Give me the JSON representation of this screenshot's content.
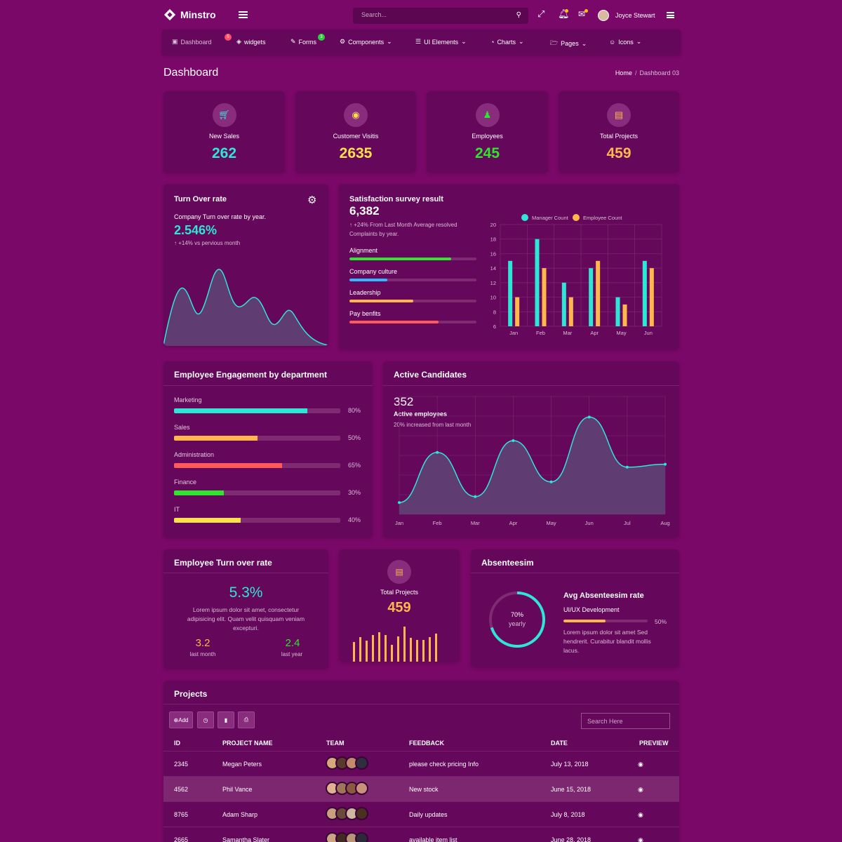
{
  "brand": {
    "name": "Minstro"
  },
  "search": {
    "placeholder": "Search..."
  },
  "user": {
    "name": "Joyce Stewart"
  },
  "nav": [
    {
      "label": "Dashboard",
      "badge": "5",
      "icon": "laptop-icon"
    },
    {
      "label": "widgets",
      "icon": "cube-icon"
    },
    {
      "label": "Forms",
      "badge": "3",
      "icon": "edit-icon"
    },
    {
      "label": "Components",
      "icon": "cogs-icon"
    },
    {
      "label": "UI Elements",
      "icon": "list-icon"
    },
    {
      "label": "Charts",
      "icon": "pie-chart-icon"
    },
    {
      "label": "Pages",
      "icon": "folder-icon"
    },
    {
      "label": "Icons",
      "icon": "smile-icon"
    }
  ],
  "page": {
    "title": "Dashboard",
    "breadcrumb_home": "Home",
    "breadcrumb_sep": "/",
    "breadcrumb_current": "Dashboard 03"
  },
  "stats": [
    {
      "label": "New Sales",
      "value": "262",
      "color": "#2ee6d6",
      "icon": "cart-icon"
    },
    {
      "label": "Customer Visitis",
      "value": "2635",
      "color": "#ffe14a",
      "icon": "eye-icon"
    },
    {
      "label": "Employees",
      "value": "245",
      "color": "#2ee62e",
      "icon": "user-icon"
    },
    {
      "label": "Total Projects",
      "value": "459",
      "color": "#ffb74d",
      "icon": "briefcase-icon"
    }
  ],
  "turnover": {
    "title": "Turn Over rate",
    "subtitle": "Company Turn over rate by year.",
    "value": "2.546%",
    "change": "+14%",
    "change_label": "vs pervious month"
  },
  "survey": {
    "title": "Satisfaction survey result",
    "value": "6,382",
    "change": "+24%",
    "note": "From Last Month Average resolved Complaints by year.",
    "items": [
      {
        "label": "Alignment",
        "percent": 80,
        "color": "#2ee62e"
      },
      {
        "label": "Company culture",
        "percent": 30,
        "color": "#2fb8ff"
      },
      {
        "label": "Leadership",
        "percent": 50,
        "color": "#ffb74d"
      },
      {
        "label": "Pay benfits",
        "percent": 70,
        "color": "#ff5a5a"
      }
    ]
  },
  "chart_data": [
    {
      "type": "bar",
      "categories": [
        "Jan",
        "Feb",
        "Mar",
        "Apr",
        "May",
        "Jun"
      ],
      "series": [
        {
          "name": "Manager Count",
          "values": [
            15,
            18,
            12,
            14,
            10,
            15
          ],
          "color": "#2ee6d6"
        },
        {
          "name": "Employee Count",
          "values": [
            10,
            14,
            10,
            15,
            9,
            14
          ],
          "color": "#ffb74d"
        }
      ],
      "ylim": [
        6,
        20
      ],
      "yticks": [
        "20",
        "18",
        "16",
        "14",
        "12",
        "10",
        "8",
        "6"
      ],
      "legend": "top"
    },
    {
      "type": "area",
      "categories": [
        "Jan",
        "Feb",
        "Mar",
        "Apr",
        "May",
        "Jun",
        "Jul",
        "Aug"
      ],
      "values": [
        8,
        42,
        12,
        50,
        22,
        66,
        32,
        34
      ]
    }
  ],
  "engagement": {
    "title": "Employee Engagement by department",
    "items": [
      {
        "label": "Marketing",
        "percent": 80,
        "value": "80%",
        "color": "#2ee6d6"
      },
      {
        "label": "Sales",
        "percent": 50,
        "value": "50%",
        "color": "#ffb74d"
      },
      {
        "label": "Administration",
        "percent": 65,
        "value": "65%",
        "color": "#ff5a5a"
      },
      {
        "label": "Finance",
        "percent": 30,
        "value": "30%",
        "color": "#2ee62e"
      },
      {
        "label": "IT",
        "percent": 40,
        "value": "40%",
        "color": "#ffe14a"
      }
    ]
  },
  "candidates": {
    "title": "Active Candidates",
    "value": "352",
    "label": "Active employees",
    "note": "20% increased from last month"
  },
  "emp_turnover": {
    "title": "Employee Turn over rate",
    "value": "5.3%",
    "text": "Lorem ipsum dolor sit amet, consectetur adipisicing elit. Quam velit quisquam veniam excepturi.",
    "left_value": "3.2",
    "left_label": "last month",
    "right_value": "2.4",
    "right_label": "last year"
  },
  "total_projects": {
    "label": "Total Projects",
    "value": "459",
    "bars": [
      28,
      35,
      30,
      38,
      42,
      38,
      24,
      36,
      50,
      34,
      31,
      31,
      35,
      40
    ]
  },
  "absenteeism": {
    "title": "Absenteesim",
    "ring_value": "70%",
    "ring_percent": 70,
    "ring_label": "yearly",
    "heading": "Avg Absenteesim rate",
    "sub": "UI/UX Development",
    "bar_value": "50%",
    "bar_percent": 50,
    "text": "Lorem ipsum dolor sit amet Sed hendrerit. Curabitur blandit mollis lacus."
  },
  "projects": {
    "title": "Projects",
    "add_label": "Add",
    "search_placeholder": "Search Here",
    "columns": [
      "ID",
      "PROJECT NAME",
      "TEAM",
      "FEEDBACK",
      "DATE",
      "PREVIEW"
    ],
    "rows": [
      {
        "id": "2345",
        "name": "Megan Peters",
        "feedback": "please check pricing Info",
        "date": "July 13, 2018"
      },
      {
        "id": "4562",
        "name": "Phil Vance",
        "feedback": "New stock",
        "date": "June 15, 2018"
      },
      {
        "id": "8765",
        "name": "Adam Sharp",
        "feedback": "Daily updates",
        "date": "July 8, 2018"
      },
      {
        "id": "2665",
        "name": "Samantha Slater",
        "feedback": "available item list",
        "date": "June 28, 2018"
      }
    ]
  }
}
